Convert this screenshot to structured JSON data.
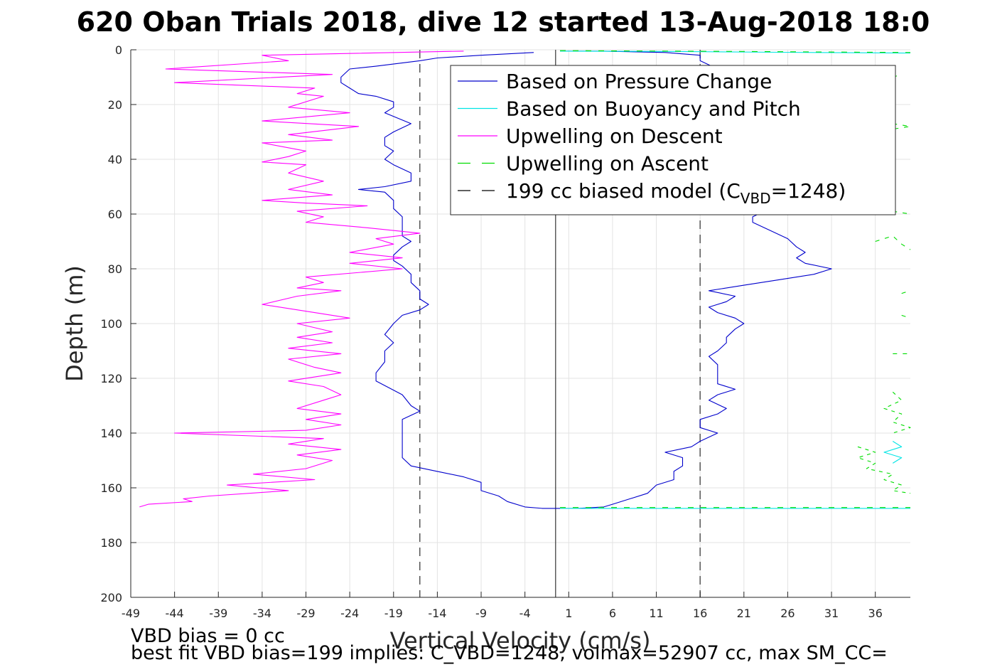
{
  "chart_data": {
    "type": "line",
    "title": "620 Oban Trials 2018, dive 12 started 13-Aug-2018 18:0",
    "xlabel": "Vertical Velocity (cm/s)",
    "ylabel": "Depth (m)",
    "xlim": [
      -49,
      40
    ],
    "ylim": [
      0,
      200
    ],
    "y_reversed": true,
    "grid": true,
    "x_ticks": [
      -49,
      -44,
      -39,
      -34,
      -29,
      -24,
      -19,
      -14,
      -9,
      -4,
      1,
      6,
      11,
      16,
      21,
      26,
      31,
      36
    ],
    "y_ticks": [
      0,
      20,
      40,
      60,
      80,
      100,
      120,
      140,
      160,
      180,
      200
    ],
    "legend_position": "top-right",
    "legend": [
      {
        "label": "Based on Pressure Change",
        "color": "#0000cc",
        "dash": "solid"
      },
      {
        "label": "Based on Buoyancy and Pitch",
        "color": "#00e5e5",
        "dash": "solid"
      },
      {
        "label": "Upwelling on Descent",
        "color": "#ff00ff",
        "dash": "solid"
      },
      {
        "label": "Upwelling on Ascent",
        "color": "#00dd00",
        "dash": "dashed"
      },
      {
        "label_main": "199 cc biased model (C",
        "label_sub": "VBD",
        "label_end": "=1248)",
        "color": "#000000",
        "dash": "dashed"
      }
    ],
    "zero_line_x": -0.5,
    "model_lines_x": [
      -16,
      16
    ],
    "series": [
      {
        "color": "#0000cc",
        "points": [
          [
            -3,
            1
          ],
          [
            -9,
            2
          ],
          [
            -14,
            3
          ],
          [
            -16,
            4
          ],
          [
            -21,
            6
          ],
          [
            -24,
            7
          ],
          [
            -25,
            10
          ],
          [
            -25,
            12
          ],
          [
            -24,
            14
          ],
          [
            -23,
            16
          ],
          [
            -21,
            17
          ],
          [
            -19,
            19
          ],
          [
            -19,
            21
          ],
          [
            -20,
            23
          ],
          [
            -17,
            27
          ],
          [
            -19,
            30
          ],
          [
            -20,
            32
          ],
          [
            -20,
            35
          ],
          [
            -19,
            37
          ],
          [
            -20,
            40
          ],
          [
            -19,
            42
          ],
          [
            -17,
            45
          ],
          [
            -17,
            48
          ],
          [
            -20,
            50
          ],
          [
            -23,
            51
          ],
          [
            -20,
            52
          ],
          [
            -19,
            55
          ],
          [
            -19,
            58
          ],
          [
            -18,
            61
          ],
          [
            -18,
            64
          ],
          [
            -18,
            68
          ],
          [
            -17,
            70
          ],
          [
            -18,
            72
          ],
          [
            -19,
            75
          ],
          [
            -19,
            77
          ],
          [
            -18,
            79
          ],
          [
            -17,
            82
          ],
          [
            -17,
            85
          ],
          [
            -16,
            88
          ],
          [
            -16,
            91
          ],
          [
            -15,
            93
          ],
          [
            -16,
            95
          ],
          [
            -18,
            97
          ],
          [
            -19,
            100
          ],
          [
            -20,
            104
          ],
          [
            -19,
            107
          ],
          [
            -20,
            110
          ],
          [
            -20,
            114
          ],
          [
            -21,
            118
          ],
          [
            -21,
            121
          ],
          [
            -18,
            126
          ],
          [
            -17,
            130
          ],
          [
            -16,
            132
          ],
          [
            -18,
            135
          ],
          [
            -18,
            138
          ],
          [
            -18,
            140
          ],
          [
            -18,
            143
          ],
          [
            -18,
            146
          ],
          [
            -18,
            149
          ],
          [
            -17,
            152
          ],
          [
            -14,
            154
          ],
          [
            -11,
            156
          ],
          [
            -9,
            158
          ],
          [
            -9,
            161
          ],
          [
            -7,
            163
          ],
          [
            -6,
            165
          ],
          [
            -4,
            167
          ],
          [
            -2,
            167.5
          ],
          [
            0,
            167.5
          ],
          [
            2,
            167.5
          ],
          [
            5,
            167
          ],
          [
            6,
            166
          ],
          [
            8,
            164
          ],
          [
            10,
            162
          ],
          [
            11,
            159
          ],
          [
            13,
            157
          ],
          [
            13,
            154
          ],
          [
            14,
            152
          ],
          [
            14,
            149
          ],
          [
            12,
            147
          ],
          [
            15,
            145
          ],
          [
            16,
            143
          ],
          [
            18,
            140
          ],
          [
            16,
            138
          ],
          [
            16,
            135
          ],
          [
            18,
            133
          ],
          [
            19,
            131
          ],
          [
            17,
            128
          ],
          [
            18,
            126
          ],
          [
            20,
            124
          ],
          [
            18,
            122
          ],
          [
            18,
            119
          ],
          [
            18,
            115
          ],
          [
            17,
            112
          ],
          [
            18,
            110
          ],
          [
            19,
            107
          ],
          [
            19,
            105
          ],
          [
            20,
            102
          ],
          [
            21,
            100
          ],
          [
            20,
            98
          ],
          [
            18,
            96
          ],
          [
            17,
            94
          ],
          [
            19,
            92
          ],
          [
            20,
            90
          ],
          [
            17,
            88
          ],
          [
            21,
            86
          ],
          [
            25,
            84
          ],
          [
            29,
            82
          ],
          [
            31,
            80
          ],
          [
            28,
            78
          ],
          [
            27,
            76
          ],
          [
            28,
            74
          ],
          [
            27,
            72
          ],
          [
            26,
            69
          ],
          [
            24,
            66
          ],
          [
            22,
            63
          ],
          [
            22,
            61
          ],
          [
            24,
            58
          ],
          [
            26,
            55
          ],
          [
            27,
            52
          ],
          [
            27,
            49
          ],
          [
            25,
            46
          ],
          [
            25,
            43
          ],
          [
            26,
            40
          ],
          [
            24,
            37
          ],
          [
            24,
            34
          ],
          [
            26,
            31
          ],
          [
            27,
            28
          ],
          [
            24,
            25
          ],
          [
            21,
            22
          ],
          [
            20,
            19
          ],
          [
            19,
            16
          ],
          [
            20,
            13
          ],
          [
            19,
            10
          ],
          [
            18,
            7
          ],
          [
            16,
            4
          ],
          [
            16,
            2
          ],
          [
            12,
            1
          ],
          [
            5,
            0.5
          ],
          [
            0,
            0.5
          ]
        ]
      },
      {
        "color": "#00e5e5",
        "points": [
          [
            0,
            167.5
          ],
          [
            15,
            167.5
          ],
          [
            30,
            167.5
          ],
          [
            40,
            167.5
          ]
        ]
      },
      {
        "color": "#00e5e5",
        "points": [
          [
            0,
            0.5
          ],
          [
            12,
            0.6
          ],
          [
            25,
            0.9
          ],
          [
            40,
            1.2
          ]
        ]
      },
      {
        "color": "#00e5e5",
        "points": [
          [
            38,
            143
          ],
          [
            39,
            145
          ],
          [
            37,
            147
          ],
          [
            39,
            149
          ],
          [
            38,
            151
          ]
        ]
      },
      {
        "color": "#ff00ff",
        "points": [
          [
            -11,
            0.5
          ],
          [
            -34,
            2
          ],
          [
            -31,
            4
          ],
          [
            -45,
            7
          ],
          [
            -26,
            9
          ],
          [
            -44,
            12
          ],
          [
            -28,
            14
          ],
          [
            -30,
            16
          ],
          [
            -27,
            17
          ],
          [
            -31,
            21
          ],
          [
            -24,
            23
          ],
          [
            -34,
            26
          ],
          [
            -23,
            28
          ],
          [
            -31,
            31
          ],
          [
            -26,
            33
          ],
          [
            -34,
            34
          ],
          [
            -29,
            37
          ],
          [
            -31,
            39
          ],
          [
            -34,
            41
          ],
          [
            -29,
            42
          ],
          [
            -31,
            45
          ],
          [
            -27,
            48
          ],
          [
            -31,
            51
          ],
          [
            -26,
            53
          ],
          [
            -34,
            55
          ],
          [
            -29,
            56
          ],
          [
            -22,
            57
          ],
          [
            -30,
            59
          ],
          [
            -27,
            61
          ],
          [
            -29,
            63
          ],
          [
            -22,
            65
          ],
          [
            -16,
            67
          ],
          [
            -21,
            69
          ],
          [
            -19,
            71
          ],
          [
            -24,
            74
          ],
          [
            -18,
            76
          ],
          [
            -24,
            78
          ],
          [
            -18,
            80
          ],
          [
            -29,
            83
          ],
          [
            -27,
            85
          ],
          [
            -30,
            87
          ],
          [
            -25,
            88
          ],
          [
            -30,
            90
          ],
          [
            -34,
            93
          ],
          [
            -28,
            96
          ],
          [
            -24,
            98
          ],
          [
            -30,
            100
          ],
          [
            -26,
            103
          ],
          [
            -30,
            105
          ],
          [
            -26,
            107
          ],
          [
            -31,
            109
          ],
          [
            -25,
            111
          ],
          [
            -31,
            113
          ],
          [
            -28,
            116
          ],
          [
            -25,
            118
          ],
          [
            -31,
            121
          ],
          [
            -27,
            123
          ],
          [
            -25,
            126
          ],
          [
            -27,
            128
          ],
          [
            -30,
            131
          ],
          [
            -25,
            133
          ],
          [
            -29,
            135
          ],
          [
            -25,
            137
          ],
          [
            -29,
            139
          ],
          [
            -44,
            140
          ],
          [
            -27,
            142
          ],
          [
            -31,
            144
          ],
          [
            -25,
            146
          ],
          [
            -30,
            148
          ],
          [
            -26,
            150
          ],
          [
            -29,
            153
          ],
          [
            -35,
            155
          ],
          [
            -28,
            157
          ],
          [
            -38,
            159
          ],
          [
            -31,
            161
          ],
          [
            -40,
            163
          ],
          [
            -43,
            164
          ],
          [
            -42,
            165
          ],
          [
            -47,
            166
          ],
          [
            -48,
            167
          ]
        ]
      },
      {
        "color": "#00dd00",
        "dash": "8,10",
        "points": [
          [
            0,
            0.3
          ],
          [
            20,
            0.6
          ],
          [
            40,
            1
          ]
        ]
      },
      {
        "color": "#00dd00",
        "dash": "8,10",
        "points": [
          [
            0,
            167.2
          ],
          [
            20,
            167.2
          ],
          [
            40,
            167.2
          ]
        ]
      },
      {
        "color": "#00dd00",
        "dash": "6,8",
        "points": [
          [
            38,
            10
          ],
          [
            39,
            9
          ]
        ]
      },
      {
        "color": "#00dd00",
        "dash": "6,8",
        "points": [
          [
            38,
            27
          ],
          [
            40,
            28
          ],
          [
            38,
            29
          ]
        ]
      },
      {
        "color": "#00dd00",
        "dash": "6,8",
        "points": [
          [
            38,
            59
          ],
          [
            40,
            60
          ]
        ]
      },
      {
        "color": "#00dd00",
        "dash": "6,8",
        "points": [
          [
            36,
            70
          ],
          [
            38,
            68
          ],
          [
            39,
            71
          ],
          [
            40,
            73
          ]
        ]
      },
      {
        "color": "#00dd00",
        "dash": "6,8",
        "points": [
          [
            39,
            89
          ],
          [
            40,
            88
          ]
        ]
      },
      {
        "color": "#00dd00",
        "dash": "6,8",
        "points": [
          [
            39,
            97
          ],
          [
            40,
            98
          ]
        ]
      },
      {
        "color": "#00dd00",
        "dash": "6,8",
        "points": [
          [
            38,
            111
          ],
          [
            40,
            111
          ]
        ]
      },
      {
        "color": "#00dd00",
        "dash": "5,6",
        "points": [
          [
            38,
            125
          ],
          [
            39,
            128
          ],
          [
            37,
            131
          ],
          [
            39,
            133
          ],
          [
            38,
            136
          ],
          [
            40,
            138
          ],
          [
            38,
            140
          ]
        ]
      },
      {
        "color": "#00dd00",
        "dash": "5,6",
        "points": [
          [
            34,
            145
          ],
          [
            36,
            147
          ],
          [
            34,
            149
          ],
          [
            36,
            151
          ],
          [
            35,
            153
          ],
          [
            38,
            155
          ],
          [
            37,
            157
          ],
          [
            39,
            159
          ],
          [
            38,
            161
          ],
          [
            40,
            162
          ]
        ]
      }
    ]
  },
  "notes": {
    "line1": "VBD bias = 0 cc",
    "line2": "best fit VBD bias=199 implies: C_VBD=1248, volmax=52907 cc, max SM_CC="
  }
}
